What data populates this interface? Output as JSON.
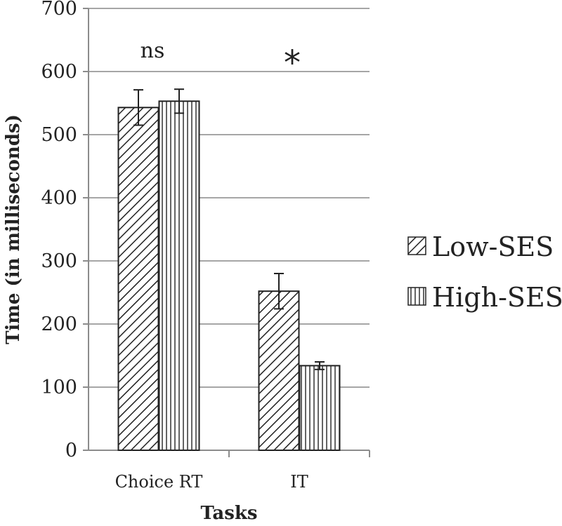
{
  "chart_data": {
    "type": "bar",
    "title": "",
    "xlabel": "Tasks",
    "ylabel": "Time (in milliseconds)",
    "ylim": [
      0,
      700
    ],
    "yticks": [
      0,
      100,
      200,
      300,
      400,
      500,
      600,
      700
    ],
    "grid": true,
    "legend_position": "right",
    "categories": [
      "Choice RT",
      "IT"
    ],
    "series": [
      {
        "name": "Low-SES",
        "pattern": "diagonal-hatch",
        "values": [
          543,
          252
        ],
        "errors": [
          28,
          28
        ]
      },
      {
        "name": "High-SES",
        "pattern": "vertical-hatch",
        "values": [
          553,
          134
        ],
        "errors": [
          19,
          6
        ]
      }
    ],
    "annotations": [
      "ns",
      "*"
    ]
  },
  "colors": {
    "bar_stroke": "#222222",
    "grid": "#a6a6a6",
    "axis": "#8c8c8c",
    "background": "#ffffff"
  }
}
